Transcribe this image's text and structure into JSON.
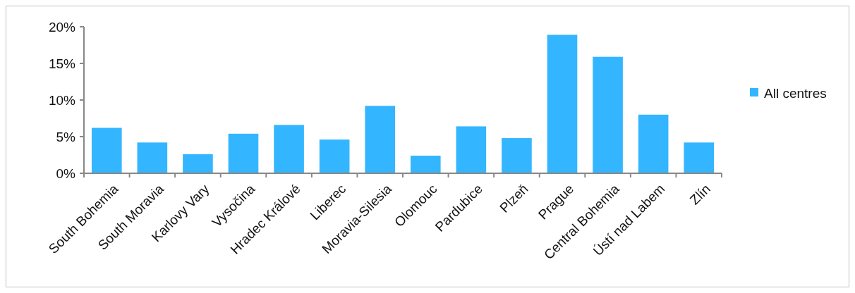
{
  "chart_data": {
    "type": "bar",
    "categories": [
      "South Bohemia",
      "South Moravia",
      "Karlovy Vary",
      "Vysočina",
      "Hradec Králové",
      "Liberec",
      "Moravia-Silesia",
      "Olomouc",
      "Pardubice",
      "Plzeň",
      "Prague",
      "Central Bohemia",
      "Ústí nad Labem",
      "Zlín"
    ],
    "series": [
      {
        "name": "All centres",
        "color": "#33b6ff",
        "values": [
          6.2,
          4.2,
          2.6,
          5.4,
          6.6,
          4.6,
          9.2,
          2.4,
          6.4,
          4.8,
          18.9,
          15.9,
          8.0,
          4.2
        ]
      }
    ],
    "ylim": [
      0,
      20
    ],
    "yticks": [
      {
        "value": 0,
        "label": "0%"
      },
      {
        "value": 5,
        "label": "5%"
      },
      {
        "value": 10,
        "label": "10%"
      },
      {
        "value": 15,
        "label": "15%"
      },
      {
        "value": 20,
        "label": "20%"
      }
    ],
    "grid": false,
    "legend": "right"
  }
}
